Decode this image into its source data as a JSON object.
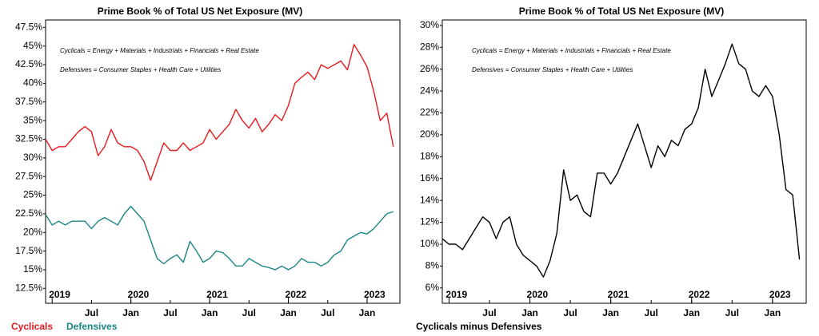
{
  "chart_data": [
    {
      "type": "line",
      "title": "Prime Book % of Total US Net Exposure (MV)",
      "annotations": [
        "Cyclicals = Energy + Materials + Industrials + Financials + Real Estate",
        "Defensives = Consumer Staples + Health Care + Utilities"
      ],
      "x": [
        "2018-12",
        "2019-01",
        "2019-02",
        "2019-03",
        "2019-04",
        "2019-05",
        "2019-06",
        "2019-07",
        "2019-08",
        "2019-09",
        "2019-10",
        "2019-11",
        "2019-12",
        "2020-01",
        "2020-02",
        "2020-03",
        "2020-04",
        "2020-05",
        "2020-06",
        "2020-07",
        "2020-08",
        "2020-09",
        "2020-10",
        "2020-11",
        "2020-12",
        "2021-01",
        "2021-02",
        "2021-03",
        "2021-04",
        "2021-05",
        "2021-06",
        "2021-07",
        "2021-08",
        "2021-09",
        "2021-10",
        "2021-11",
        "2021-12",
        "2022-01",
        "2022-02",
        "2022-03",
        "2022-04",
        "2022-05",
        "2022-06",
        "2022-07",
        "2022-08",
        "2022-09",
        "2022-10",
        "2022-11",
        "2022-12",
        "2023-01",
        "2023-02",
        "2023-03",
        "2023-04",
        "2023-05"
      ],
      "series": [
        {
          "name": "Cyclicals",
          "color": "#e8191c",
          "values": [
            32.5,
            31,
            31.5,
            31.5,
            32.5,
            33.5,
            34.2,
            33.5,
            30.3,
            31.5,
            33.8,
            32,
            31.5,
            31.5,
            31,
            29.5,
            27,
            29.5,
            32,
            31,
            31,
            32,
            31,
            31.5,
            32,
            33.8,
            32.5,
            33.5,
            34.5,
            36.5,
            35,
            34,
            35.3,
            33.5,
            34.5,
            35.8,
            35,
            37,
            40,
            40.8,
            41.5,
            40.5,
            42.5,
            42,
            42.5,
            43,
            41.8,
            45.2,
            43.8,
            42.2,
            39,
            35,
            36,
            31.5
          ]
        },
        {
          "name": "Defensives",
          "color": "#1a8585",
          "values": [
            22.4,
            21,
            21.5,
            21,
            21.5,
            21.5,
            21.5,
            20.5,
            21.5,
            22,
            21.5,
            21,
            22.5,
            23.5,
            22.5,
            21.5,
            19,
            16.5,
            15.8,
            16.5,
            17,
            16,
            18.8,
            17.5,
            16,
            16.5,
            17.5,
            17.3,
            16.5,
            15.5,
            15.5,
            16.5,
            16,
            15.5,
            15.3,
            15,
            15.5,
            15,
            15.5,
            16.5,
            16,
            16,
            15.5,
            16,
            17,
            17.5,
            19,
            19.5,
            20,
            19.8,
            20.5,
            21.5,
            22.5,
            22.8
          ]
        }
      ],
      "xlim": [
        "2018-12",
        "2023-06"
      ],
      "xticks": [
        {
          "value": "2019-07",
          "label": "Jul"
        },
        {
          "value": "2020-01",
          "label": "Jan"
        },
        {
          "value": "2020-07",
          "label": "Jul"
        },
        {
          "value": "2021-01",
          "label": "Jan"
        },
        {
          "value": "2021-07",
          "label": "Jul"
        },
        {
          "value": "2022-01",
          "label": "Jan"
        },
        {
          "value": "2022-07",
          "label": "Jul"
        },
        {
          "value": "2023-01",
          "label": "Jan"
        }
      ],
      "xticks_years": [
        {
          "value": "2019-01",
          "label": "2019"
        },
        {
          "value": "2020-01",
          "label": "2020"
        },
        {
          "value": "2021-01",
          "label": "2021"
        },
        {
          "value": "2022-01",
          "label": "2022"
        },
        {
          "value": "2023-01",
          "label": "2023"
        }
      ],
      "ylim": [
        10.5,
        48.5
      ],
      "yticks": [
        {
          "value": 12.5,
          "label": "12.5%"
        },
        {
          "value": 15,
          "label": "15%"
        },
        {
          "value": 17.5,
          "label": "17.5%"
        },
        {
          "value": 20,
          "label": "20%"
        },
        {
          "value": 22.5,
          "label": "22.5%"
        },
        {
          "value": 25,
          "label": "25%"
        },
        {
          "value": 27.5,
          "label": "27.5%"
        },
        {
          "value": 30,
          "label": "30%"
        },
        {
          "value": 32.5,
          "label": "32.5%"
        },
        {
          "value": 35,
          "label": "35%"
        },
        {
          "value": 37.5,
          "label": "37.5%"
        },
        {
          "value": 40,
          "label": "40%"
        },
        {
          "value": 42.5,
          "label": "42.5%"
        },
        {
          "value": 45,
          "label": "45%"
        },
        {
          "value": 47.5,
          "label": "47.5%"
        }
      ],
      "grid": false
    },
    {
      "type": "line",
      "title": "Prime Book % of Total US Net Exposure (MV)",
      "annotations": [
        "Cyclicals = Energy + Materials + Industrials + Financials + Real Estate",
        "Defensives = Consumer Staples + Health Care + Utilities"
      ],
      "x": [
        "2018-12",
        "2019-01",
        "2019-02",
        "2019-03",
        "2019-04",
        "2019-05",
        "2019-06",
        "2019-07",
        "2019-08",
        "2019-09",
        "2019-10",
        "2019-11",
        "2019-12",
        "2020-01",
        "2020-02",
        "2020-03",
        "2020-04",
        "2020-05",
        "2020-06",
        "2020-07",
        "2020-08",
        "2020-09",
        "2020-10",
        "2020-11",
        "2020-12",
        "2021-01",
        "2021-02",
        "2021-03",
        "2021-04",
        "2021-05",
        "2021-06",
        "2021-07",
        "2021-08",
        "2021-09",
        "2021-10",
        "2021-11",
        "2021-12",
        "2022-01",
        "2022-02",
        "2022-03",
        "2022-04",
        "2022-05",
        "2022-06",
        "2022-07",
        "2022-08",
        "2022-09",
        "2022-10",
        "2022-11",
        "2022-12",
        "2023-01",
        "2023-02",
        "2023-03",
        "2023-04",
        "2023-05"
      ],
      "series": [
        {
          "name": "Cyclicals minus Defensives",
          "color": "#000000",
          "values": [
            10.5,
            10,
            10,
            9.5,
            10.5,
            11.5,
            12.5,
            12,
            10.5,
            12,
            12.5,
            10,
            9,
            8.5,
            8,
            7,
            8.5,
            11,
            16.8,
            14,
            14.5,
            13,
            12.5,
            16.5,
            16.5,
            15.5,
            16.5,
            18,
            19.5,
            21,
            19,
            17,
            19,
            18,
            19.5,
            19,
            20.5,
            21,
            22.5,
            26,
            23.5,
            25,
            26.5,
            28.3,
            26.5,
            26,
            24,
            23.5,
            24.5,
            23.5,
            20,
            15,
            14.5,
            8.6
          ]
        }
      ],
      "xlim": [
        "2018-12",
        "2023-06"
      ],
      "xticks": [
        {
          "value": "2019-07",
          "label": "Jul"
        },
        {
          "value": "2020-01",
          "label": "Jan"
        },
        {
          "value": "2020-07",
          "label": "Jul"
        },
        {
          "value": "2021-01",
          "label": "Jan"
        },
        {
          "value": "2021-07",
          "label": "Jul"
        },
        {
          "value": "2022-01",
          "label": "Jan"
        },
        {
          "value": "2022-07",
          "label": "Jul"
        },
        {
          "value": "2023-01",
          "label": "Jan"
        }
      ],
      "xticks_years": [
        {
          "value": "2019-01",
          "label": "2019"
        },
        {
          "value": "2020-01",
          "label": "2020"
        },
        {
          "value": "2021-01",
          "label": "2021"
        },
        {
          "value": "2022-01",
          "label": "2022"
        },
        {
          "value": "2023-01",
          "label": "2023"
        }
      ],
      "ylim": [
        4.6,
        30.5
      ],
      "yticks": [
        {
          "value": 6,
          "label": "6%"
        },
        {
          "value": 8,
          "label": "8%"
        },
        {
          "value": 10,
          "label": "10%"
        },
        {
          "value": 12,
          "label": "12%"
        },
        {
          "value": 14,
          "label": "14%"
        },
        {
          "value": 16,
          "label": "16%"
        },
        {
          "value": 18,
          "label": "18%"
        },
        {
          "value": 20,
          "label": "20%"
        },
        {
          "value": 22,
          "label": "22%"
        },
        {
          "value": 24,
          "label": "24%"
        },
        {
          "value": 26,
          "label": "26%"
        },
        {
          "value": 28,
          "label": "28%"
        },
        {
          "value": 30,
          "label": "30%"
        }
      ],
      "grid": false
    }
  ]
}
